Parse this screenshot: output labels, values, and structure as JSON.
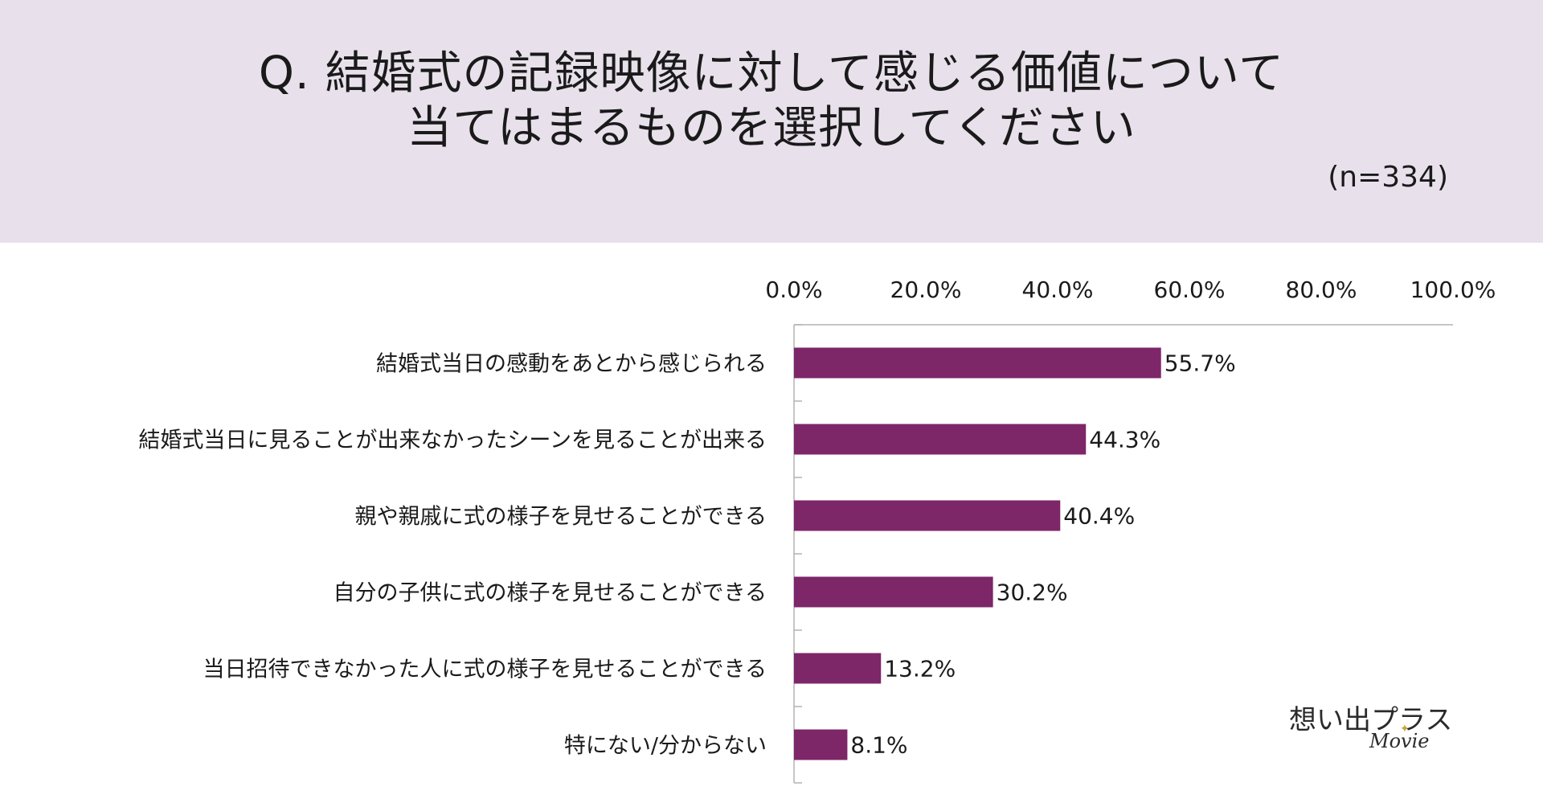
{
  "header": {
    "title_line1": "Q. 結婚式の記録映像に対して感じる価値について",
    "title_line2": "当てはまるものを選択してください",
    "sample_size": "(n=334)"
  },
  "logo": {
    "text": "想い出プラス",
    "sub": "Movie",
    "star_icon": "sparkle-star-icon"
  },
  "colors": {
    "header_bg": "#e8e1ec",
    "bar": "#7d2668"
  },
  "chart_data": {
    "type": "bar",
    "orientation": "horizontal",
    "categories": [
      "結婚式当日の感動をあとから感じられる",
      "結婚式当日に見ることが出来なかったシーンを見ることが出来る",
      "親や親戚に式の様子を見せることができる",
      "自分の子供に式の様子を見せることができる",
      "当日招待できなかった人に式の様子を見せることができる",
      "特にない/分からない"
    ],
    "values": [
      55.7,
      44.3,
      40.4,
      30.2,
      13.2,
      8.1
    ],
    "value_labels": [
      "55.7%",
      "44.3%",
      "40.4%",
      "30.2%",
      "13.2%",
      "8.1%"
    ],
    "xlim": [
      0,
      100
    ],
    "ticks": [
      0,
      20,
      40,
      60,
      80,
      100
    ],
    "tick_labels": [
      "0.0%",
      "20.0%",
      "40.0%",
      "60.0%",
      "80.0%",
      "100.0%"
    ],
    "axis_position": "top",
    "grid": false,
    "legend": "none",
    "bar_color": "#7d2668"
  }
}
